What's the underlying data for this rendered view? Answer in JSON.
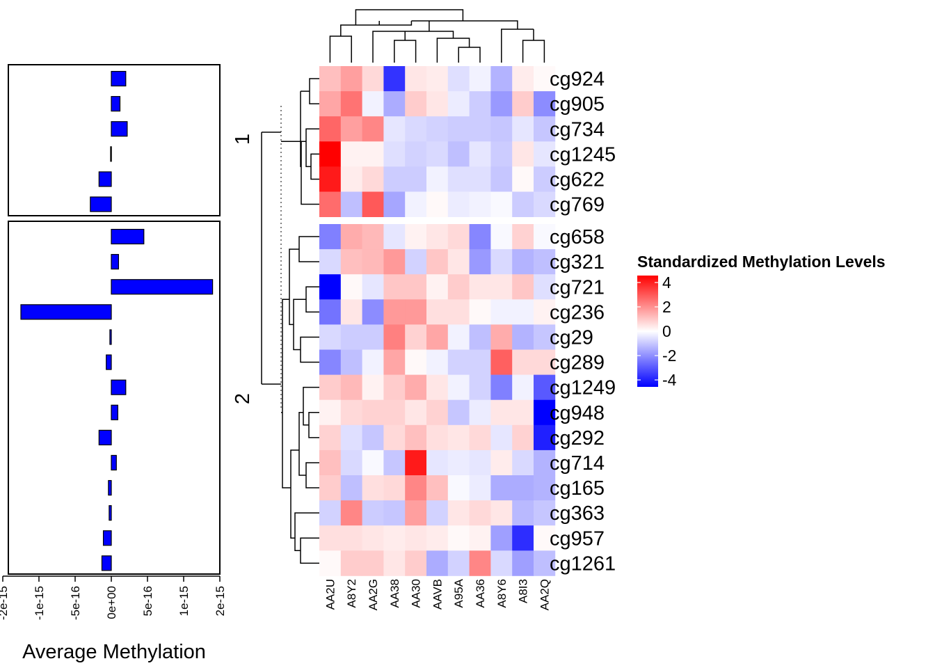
{
  "chart_data": {
    "type": "heatmap",
    "heatmap": {
      "columns": [
        "AA2U",
        "A8Y2",
        "AA2G",
        "AA38",
        "AA30",
        "AAVB",
        "A95A",
        "AA36",
        "A8Y6",
        "A8I3",
        "AA2Q"
      ],
      "row_groups": [
        {
          "label": "1",
          "rows": [
            "cg924",
            "cg905",
            "cg734",
            "cg1245",
            "cg622",
            "cg769"
          ]
        },
        {
          "label": "2",
          "rows": [
            "cg658",
            "cg321",
            "cg721",
            "cg236",
            "cg29",
            "cg289",
            "cg1249",
            "cg948",
            "cg292",
            "cg714",
            "cg165",
            "cg363",
            "cg957",
            "cg1261"
          ]
        }
      ],
      "values": [
        [
          1.0,
          1.5,
          0.6,
          -3.2,
          0.4,
          0.3,
          -0.5,
          -0.2,
          -1.2,
          0.3,
          0.1
        ],
        [
          1.4,
          2.2,
          -0.2,
          -1.3,
          0.8,
          0.4,
          -0.3,
          -0.8,
          -1.6,
          0.8,
          -1.8
        ],
        [
          2.4,
          1.5,
          1.9,
          -0.4,
          -0.6,
          -0.7,
          -0.8,
          -0.8,
          -0.9,
          -0.4,
          -0.9
        ],
        [
          4.0,
          0.2,
          0.2,
          -0.5,
          -0.7,
          -0.6,
          -1.0,
          -0.4,
          -0.8,
          0.4,
          -0.4
        ],
        [
          3.6,
          0.3,
          0.6,
          -0.8,
          -0.8,
          -0.2,
          -0.5,
          -0.5,
          -0.9,
          0.1,
          -0.8
        ],
        [
          2.3,
          -1.0,
          2.6,
          -1.4,
          -0.2,
          0.1,
          -0.3,
          -0.2,
          -0.1,
          -0.8,
          -0.6
        ],
        [
          -2.0,
          1.3,
          1.1,
          -0.4,
          0.2,
          0.4,
          0.6,
          -1.9,
          -0.1,
          0.7,
          -0.1
        ],
        [
          -0.6,
          1.0,
          1.1,
          1.6,
          -0.7,
          0.9,
          0.4,
          -1.6,
          -0.6,
          -1.2,
          -1.0
        ],
        [
          -4.0,
          0.1,
          -0.4,
          0.9,
          0.9,
          0.2,
          0.8,
          0.4,
          0.4,
          0.9,
          -0.5
        ],
        [
          -2.2,
          0.4,
          -1.8,
          1.6,
          1.6,
          0.5,
          0.5,
          0.1,
          -0.2,
          -0.2,
          0.2
        ],
        [
          -0.6,
          -0.8,
          -0.8,
          2.0,
          0.7,
          1.4,
          -0.2,
          -1.0,
          1.3,
          -1.2,
          -0.9
        ],
        [
          -1.9,
          -1.0,
          -0.2,
          1.4,
          0.1,
          -0.2,
          -0.7,
          -0.7,
          2.5,
          0.6,
          0.6
        ],
        [
          0.8,
          1.1,
          0.2,
          0.8,
          1.3,
          0.4,
          -0.2,
          -0.7,
          -2.0,
          -0.2,
          -2.6
        ],
        [
          0.2,
          0.6,
          0.7,
          0.7,
          0.4,
          0.7,
          -0.9,
          -0.3,
          0.4,
          0.4,
          -4.0
        ],
        [
          0.7,
          -0.5,
          -0.9,
          0.6,
          1.0,
          0.5,
          0.4,
          0.6,
          -0.4,
          0.7,
          -3.5
        ],
        [
          1.0,
          -0.6,
          -0.1,
          -0.9,
          3.6,
          -0.4,
          -0.3,
          -0.4,
          0.3,
          -0.6,
          -1.2
        ],
        [
          0.8,
          -1.0,
          0.5,
          0.6,
          1.9,
          1.0,
          -0.1,
          -0.3,
          -1.3,
          -1.3,
          -1.2
        ],
        [
          -0.7,
          1.9,
          -0.8,
          -0.9,
          1.5,
          -0.7,
          0.4,
          0.6,
          0.4,
          -1.1,
          -0.9
        ],
        [
          0.5,
          0.5,
          0.4,
          0.3,
          0.4,
          0.3,
          0.1,
          0.2,
          -1.5,
          -3.3,
          0.1
        ],
        [
          0.1,
          0.8,
          0.8,
          0.4,
          0.8,
          -1.3,
          -0.7,
          1.9,
          -0.6,
          -1.5,
          -1.0
        ]
      ],
      "color_legend": {
        "title": "Standardized Methylation Levels",
        "ticks": [
          "4",
          "2",
          "0",
          "-2",
          "-4"
        ],
        "range": [
          -4,
          4
        ],
        "colors": {
          "low": "#0000ff",
          "mid": "#ffffff",
          "high": "#ff0000"
        }
      }
    },
    "barplot": {
      "type": "bar",
      "orientation": "horizontal",
      "xlabel": "Average Methylation",
      "ticks": [
        "-2e-15",
        "-1e-15",
        "-5e-16",
        "0e+00",
        "5e-16",
        "1e-15",
        "2e-15"
      ],
      "tick_values": [
        -1.5e-15,
        -1e-15,
        -5e-16,
        0,
        5e-16,
        1e-15,
        1.5e-15
      ],
      "xlim": [
        -1.5e-15,
        1.5e-15
      ],
      "bar_color": "#0000ff",
      "values": [
        2e-16,
        1.2e-16,
        2.2e-16,
        -1e-17,
        -1.7e-16,
        -2.9e-16,
        4.5e-16,
        1e-16,
        1.4e-15,
        -1.25e-15,
        -2e-17,
        -7e-17,
        2e-16,
        9e-17,
        -1.7e-16,
        7e-17,
        -4e-17,
        -3e-17,
        -1.1e-16,
        -1.3e-16
      ]
    }
  }
}
